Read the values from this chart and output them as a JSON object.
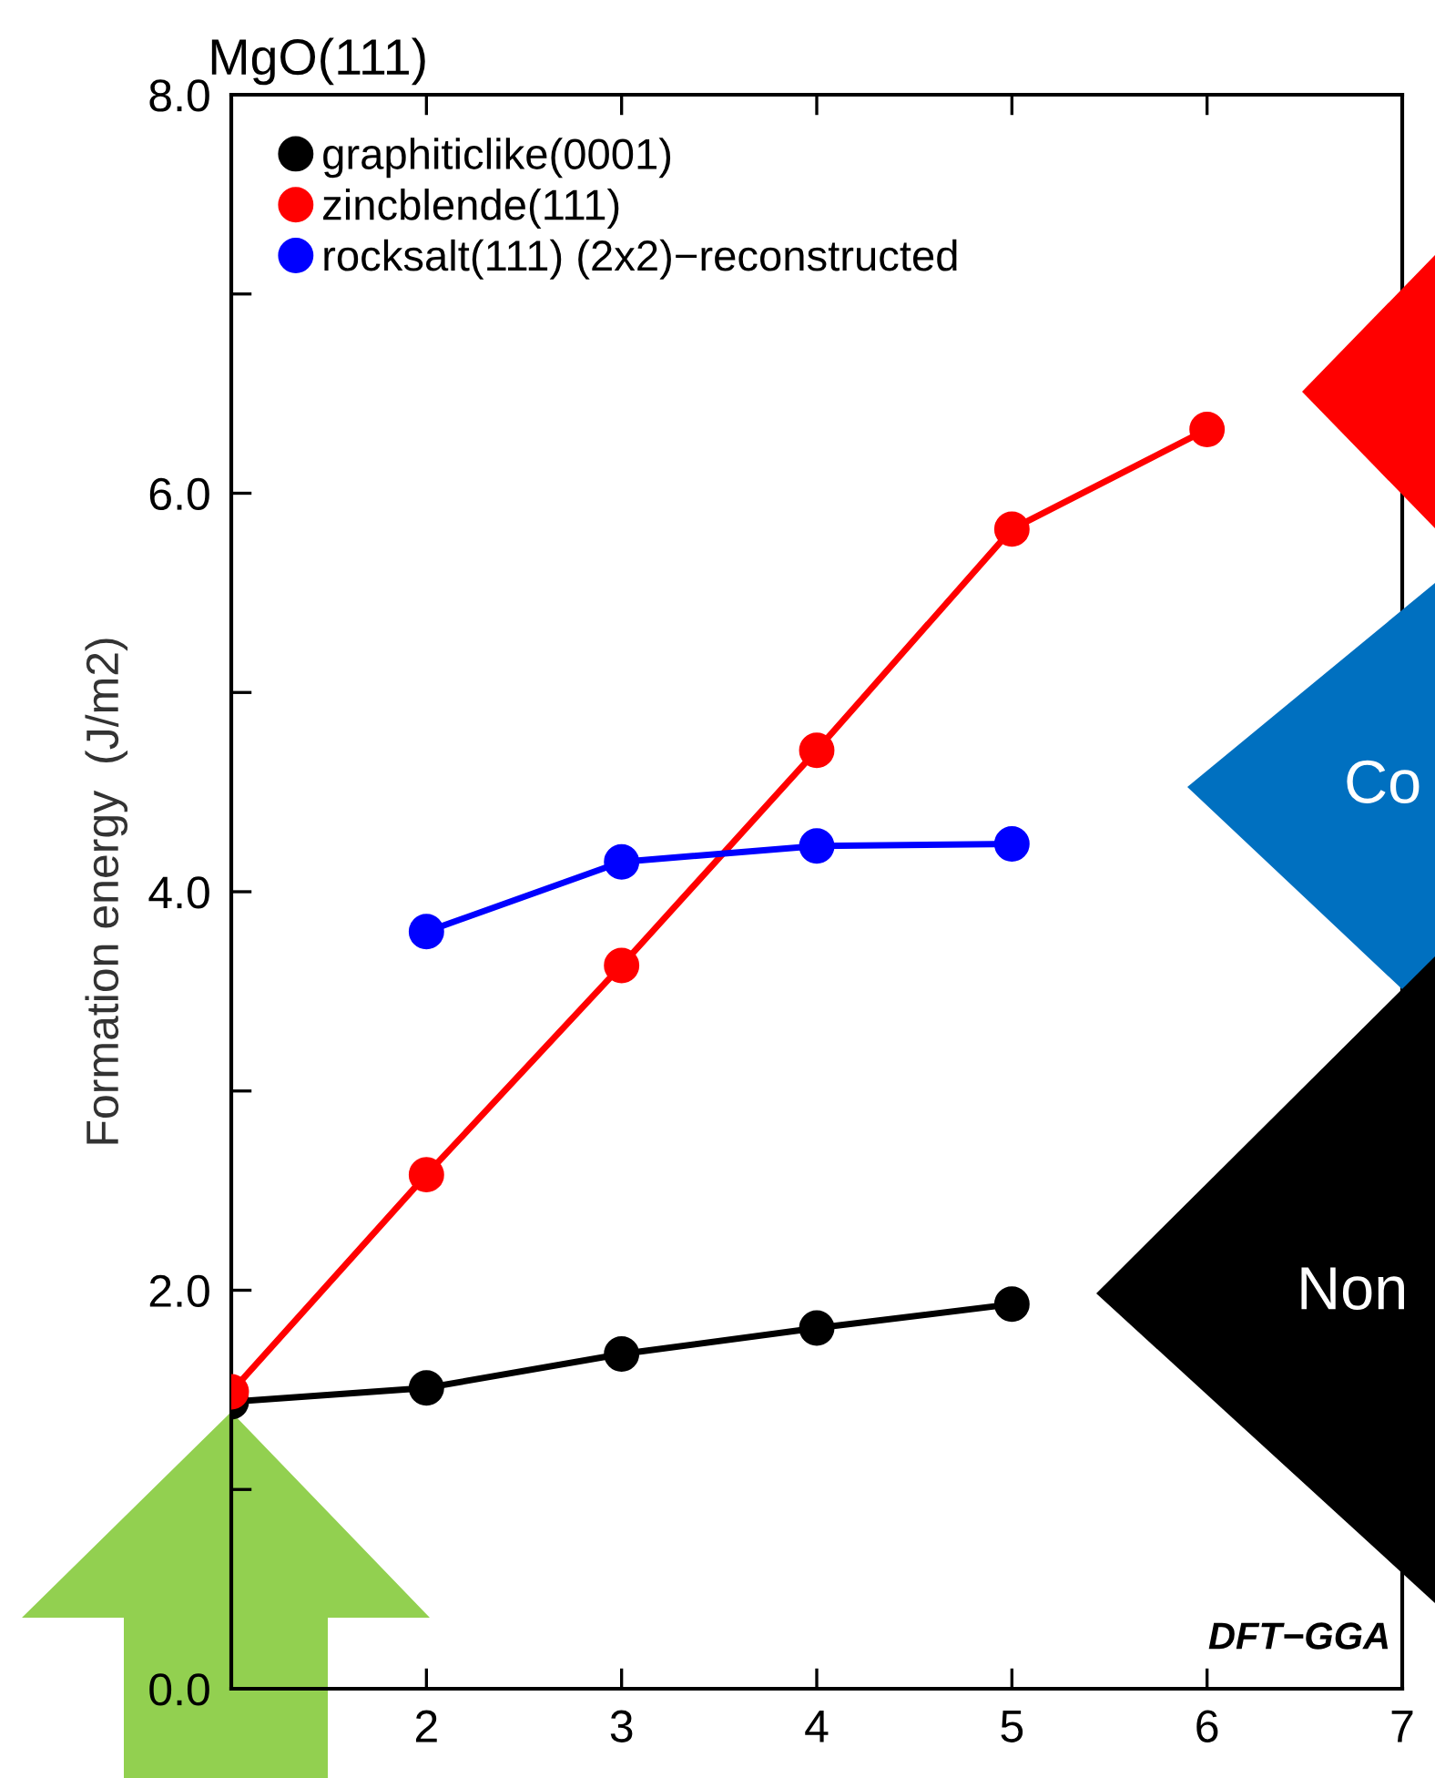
{
  "chart_data": {
    "type": "line",
    "title": "MgO(111)",
    "ylabel": "Formation energy  (J/m2)",
    "x": [
      1,
      2,
      3,
      4,
      5,
      6
    ],
    "series": [
      {
        "name": "graphiticlike(0001)",
        "color": "#000000",
        "values": [
          1.44,
          1.51,
          1.68,
          1.81,
          1.93,
          null
        ]
      },
      {
        "name": "zincblende(111)",
        "color": "#ff0000",
        "values": [
          1.49,
          2.58,
          3.63,
          4.71,
          5.82,
          6.32
        ]
      },
      {
        "name": "rocksalt(111) (2x2)−reconstructed",
        "color": "#0000ff",
        "values": [
          null,
          3.8,
          4.15,
          4.23,
          4.24,
          null
        ]
      }
    ],
    "xlim": [
      1,
      7
    ],
    "xticks": [
      {
        "value": 1,
        "label": null
      },
      2,
      3,
      4,
      5,
      6,
      7
    ],
    "ylim": [
      0,
      8
    ],
    "yticks": [
      {
        "value": 0,
        "label": "0.0"
      },
      {
        "value": 1,
        "label": null
      },
      {
        "value": 2,
        "label": "2.0"
      },
      {
        "value": 3,
        "label": null
      },
      {
        "value": 4,
        "label": "4.0"
      },
      {
        "value": 5,
        "label": null
      },
      {
        "value": 6,
        "label": "6.0"
      },
      {
        "value": 7,
        "label": null
      },
      {
        "value": 8,
        "label": "8.0"
      }
    ],
    "marker": "circle",
    "line_style": "solid",
    "grid": false,
    "legend": "top left",
    "annotations": [
      "DFT−GGA",
      "Co",
      "Non"
    ]
  }
}
